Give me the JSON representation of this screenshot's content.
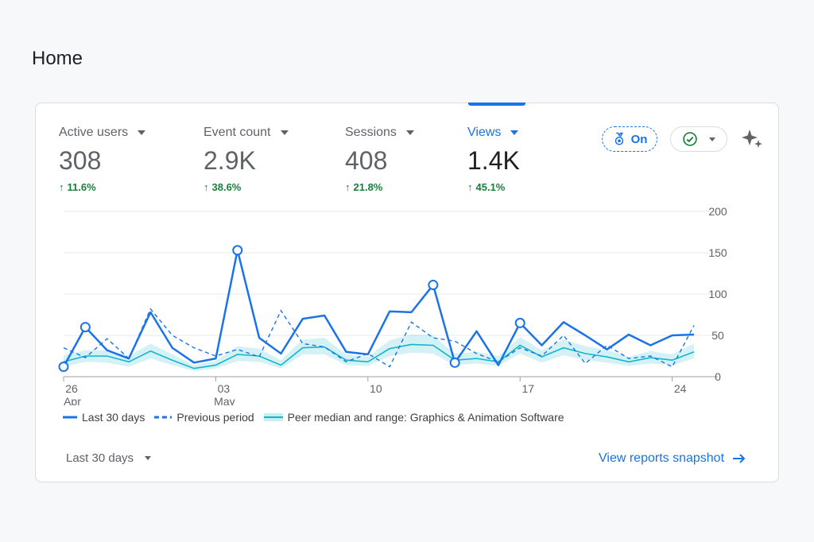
{
  "page": {
    "title": "Home"
  },
  "metrics": [
    {
      "label": "Active users",
      "value": "308",
      "delta": "11.6%"
    },
    {
      "label": "Event count",
      "value": "2.9K",
      "delta": "38.6%"
    },
    {
      "label": "Sessions",
      "value": "408",
      "delta": "21.8%"
    },
    {
      "label": "Views",
      "value": "1.4K",
      "delta": "45.1%"
    }
  ],
  "controls": {
    "insights_label": "On",
    "icons": [
      "medal-icon",
      "check-circle-icon",
      "sparkle-icon"
    ]
  },
  "colors": {
    "primary": "#1a73e8",
    "teal": "#12b5cb",
    "positive": "#188038"
  },
  "legend": {
    "current": "Last 30 days",
    "previous": "Previous period",
    "peer": "Peer median and range: Graphics & Animation Software"
  },
  "footer": {
    "period": "Last 30 days",
    "link": "View reports snapshot"
  },
  "chart_data": {
    "type": "line",
    "x": [
      "Apr 26",
      "Apr 27",
      "Apr 28",
      "Apr 29",
      "Apr 30",
      "May 01",
      "May 02",
      "May 03",
      "May 04",
      "May 05",
      "May 06",
      "May 07",
      "May 08",
      "May 09",
      "May 10",
      "May 11",
      "May 12",
      "May 13",
      "May 14",
      "May 15",
      "May 16",
      "May 17",
      "May 18",
      "May 19",
      "May 20",
      "May 21",
      "May 22",
      "May 23",
      "May 24",
      "May 25"
    ],
    "x_ticks": [
      {
        "index": 0,
        "day": "26",
        "month": "Apr"
      },
      {
        "index": 7,
        "day": "03",
        "month": "May"
      },
      {
        "index": 14,
        "day": "10",
        "month": ""
      },
      {
        "index": 21,
        "day": "17",
        "month": ""
      },
      {
        "index": 28,
        "day": "24",
        "month": ""
      }
    ],
    "ylim": [
      0,
      200
    ],
    "y_ticks": [
      0,
      50,
      100,
      150,
      200
    ],
    "series": [
      {
        "name": "Last 30 days",
        "style": "solid",
        "values": [
          12,
          60,
          32,
          22,
          78,
          35,
          17,
          22,
          153,
          47,
          28,
          70,
          74,
          30,
          27,
          79,
          78,
          111,
          17,
          55,
          14,
          65,
          38,
          66,
          50,
          33,
          51,
          38,
          50,
          51
        ],
        "markers": [
          0,
          1,
          8,
          17,
          18,
          21
        ]
      },
      {
        "name": "Previous period",
        "style": "dashed",
        "values": [
          35,
          23,
          46,
          22,
          82,
          50,
          35,
          25,
          33,
          24,
          80,
          40,
          36,
          18,
          28,
          12,
          66,
          47,
          43,
          28,
          18,
          35,
          25,
          50,
          16,
          38,
          22,
          25,
          12,
          62
        ]
      },
      {
        "name": "Peer median and range: Graphics & Animation Software",
        "style": "band",
        "values": [
          18,
          25,
          25,
          18,
          31,
          20,
          10,
          14,
          27,
          25,
          14,
          35,
          36,
          20,
          18,
          34,
          39,
          38,
          20,
          22,
          18,
          38,
          24,
          35,
          28,
          24,
          18,
          23,
          20,
          30
        ],
        "low": [
          12,
          18,
          17,
          12,
          22,
          14,
          7,
          10,
          19,
          18,
          10,
          27,
          27,
          14,
          13,
          25,
          29,
          28,
          14,
          16,
          13,
          28,
          17,
          26,
          20,
          17,
          13,
          16,
          14,
          22
        ],
        "high": [
          26,
          32,
          32,
          25,
          40,
          27,
          14,
          19,
          37,
          34,
          20,
          45,
          47,
          27,
          24,
          44,
          51,
          50,
          28,
          30,
          25,
          48,
          32,
          45,
          37,
          32,
          24,
          31,
          27,
          40
        ]
      }
    ]
  }
}
